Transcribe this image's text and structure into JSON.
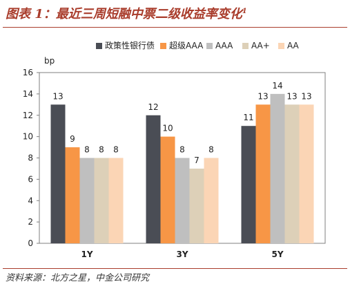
{
  "title": "图表 1：最近三周短融中票二级收益率变化",
  "title_footnote": "1",
  "source": "资料来源：北方之星，中金公司研究",
  "chart_data": {
    "type": "bar",
    "title": "图表 1：最近三周短融中票二级收益率变化",
    "ylabel": "bp",
    "xlabel": "",
    "ylim": [
      0,
      16
    ],
    "yticks": [
      0,
      2,
      4,
      6,
      8,
      10,
      12,
      14,
      16
    ],
    "grid": false,
    "legend_position": "top",
    "categories": [
      "1Y",
      "3Y",
      "5Y"
    ],
    "series": [
      {
        "name": "政策性银行债",
        "color": "#4a4d55",
        "values": [
          13,
          12,
          11
        ]
      },
      {
        "name": "超级AAA",
        "color": "#f79646",
        "values": [
          9,
          10,
          13
        ]
      },
      {
        "name": "AAA",
        "color": "#bfbfbf",
        "values": [
          8,
          8,
          14
        ]
      },
      {
        "name": "AA+",
        "color": "#ddd0b8",
        "values": [
          8,
          7,
          13
        ]
      },
      {
        "name": "AA",
        "color": "#fbd5b5",
        "values": [
          8,
          8,
          13
        ]
      }
    ]
  }
}
